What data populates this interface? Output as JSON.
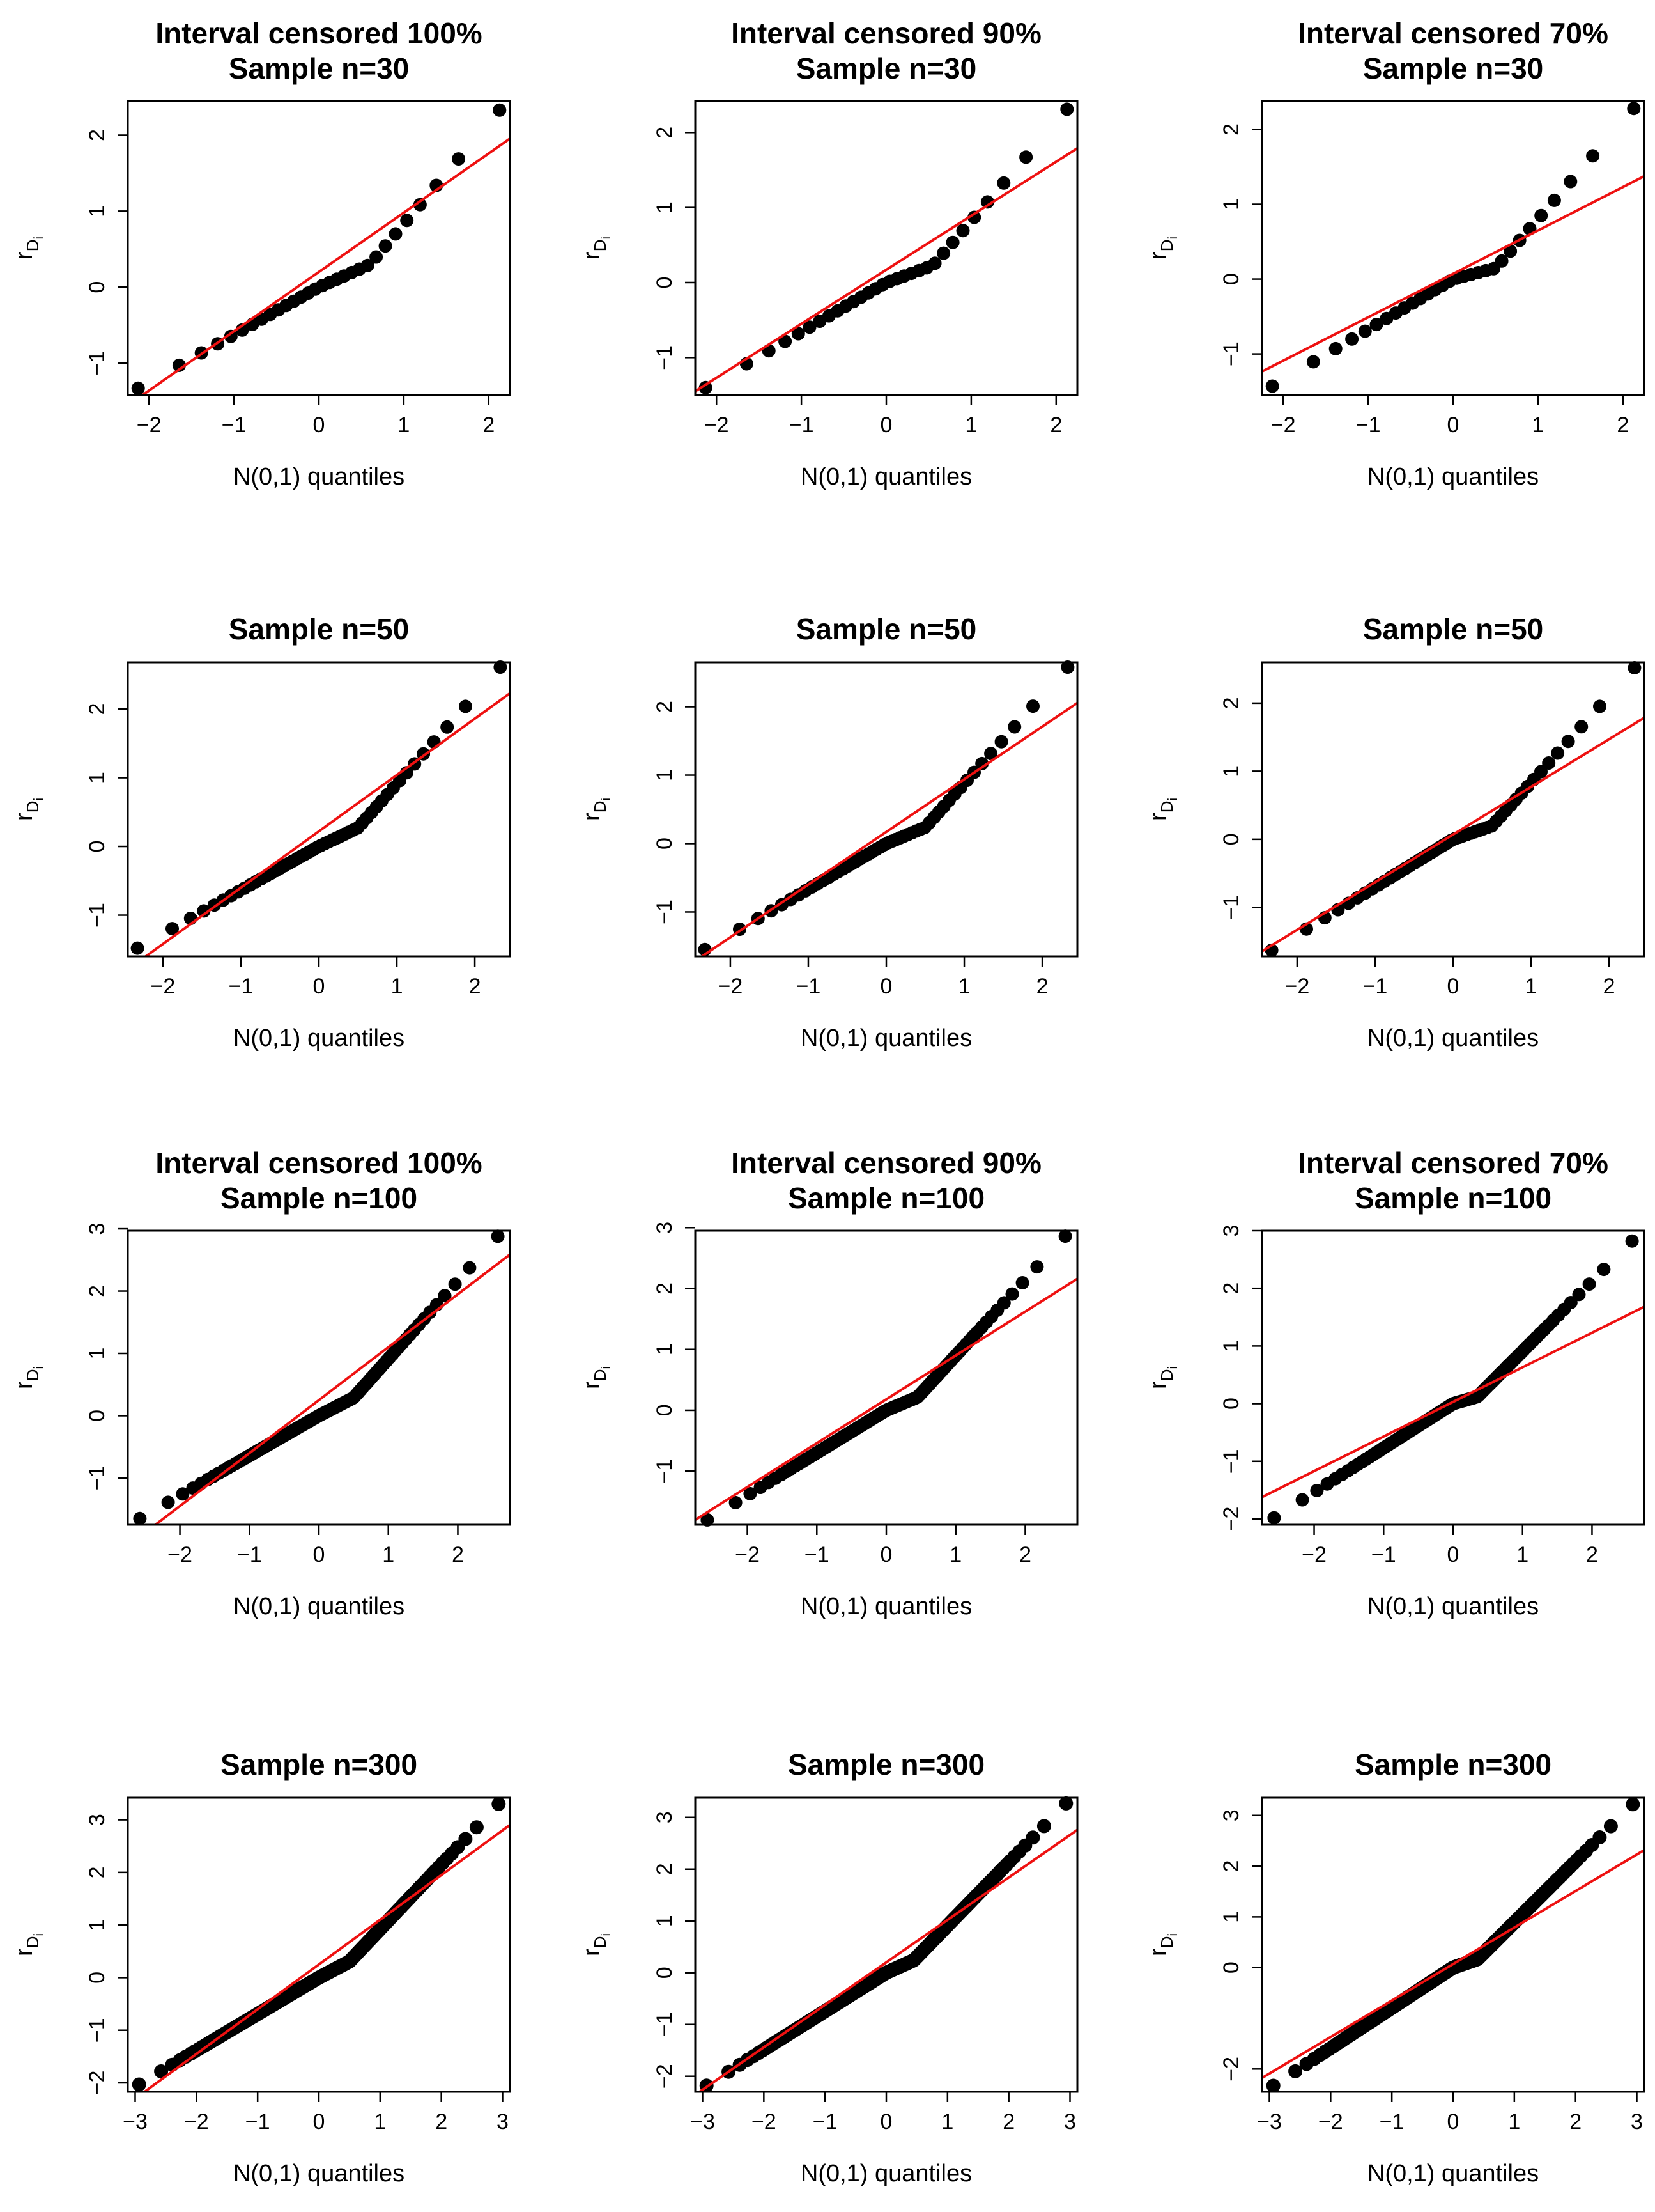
{
  "figure": {
    "x_axis_label": "N(0,1) quantiles",
    "y_axis_label": "r",
    "y_axis_label_subscript": "D",
    "y_axis_label_subsubscript": "i",
    "line_color": "#ee1111",
    "point_color": "#000000"
  },
  "chart_data": [
    {
      "type": "scatter",
      "title": [
        "Interval censored 100%",
        "Sample n=30"
      ],
      "n": 30,
      "xlim": [
        -2.25,
        2.25
      ],
      "ylim": [
        -1.42,
        2.45
      ],
      "xticks": [
        -2,
        -1,
        0,
        1,
        2
      ],
      "yticks": [
        -1,
        0,
        1,
        2
      ],
      "qq_line": {
        "intercept": 0.2,
        "slope": 0.78
      },
      "curve": {
        "knee": 0.6,
        "lower_slope": 0.58,
        "upper_slope": 1.55,
        "min": -1.33,
        "max": 2.33
      }
    },
    {
      "type": "scatter",
      "title": [
        "Interval censored 90%",
        "Sample n=30"
      ],
      "n": 30,
      "xlim": [
        -2.25,
        2.25
      ],
      "ylim": [
        -1.5,
        2.42
      ],
      "xticks": [
        -2,
        -1,
        0,
        1,
        2
      ],
      "yticks": [
        -1,
        0,
        1,
        2
      ],
      "qq_line": {
        "intercept": 0.17,
        "slope": 0.72
      },
      "curve": {
        "knee": 0.55,
        "lower_slope": 0.5,
        "upper_slope": 1.6,
        "min": -1.4,
        "max": 2.31
      }
    },
    {
      "type": "scatter",
      "title": [
        "Interval censored 70%",
        "Sample n=30"
      ],
      "n": 30,
      "xlim": [
        -2.25,
        2.25
      ],
      "ylim": [
        -1.55,
        2.38
      ],
      "xticks": [
        -2,
        -1,
        0,
        1,
        2
      ],
      "yticks": [
        -1,
        0,
        1,
        2
      ],
      "qq_line": {
        "intercept": 0.07,
        "slope": 0.58
      },
      "curve": {
        "knee": 0.5,
        "lower_slope": 0.4,
        "upper_slope": 1.8,
        "min": -1.43,
        "max": 2.28
      }
    },
    {
      "type": "scatter",
      "title": [
        "Sample n=50"
      ],
      "n": 50,
      "xlim": [
        -2.45,
        2.45
      ],
      "ylim": [
        -1.6,
        2.68
      ],
      "xticks": [
        -2,
        -1,
        0,
        1,
        2
      ],
      "yticks": [
        -1,
        0,
        1,
        2
      ],
      "qq_line": {
        "intercept": 0.22,
        "slope": 0.82
      },
      "curve": {
        "knee": 0.5,
        "lower_slope": 0.55,
        "upper_slope": 1.3,
        "min": -1.48,
        "max": 2.61
      }
    },
    {
      "type": "scatter",
      "title": [
        "Sample n=50"
      ],
      "n": 50,
      "xlim": [
        -2.45,
        2.45
      ],
      "ylim": [
        -1.65,
        2.65
      ],
      "xticks": [
        -2,
        -1,
        0,
        1,
        2
      ],
      "yticks": [
        -1,
        0,
        1,
        2
      ],
      "qq_line": {
        "intercept": 0.17,
        "slope": 0.77
      },
      "curve": {
        "knee": 0.5,
        "lower_slope": 0.5,
        "upper_slope": 1.35,
        "min": -1.55,
        "max": 2.58
      }
    },
    {
      "type": "scatter",
      "title": [
        "Sample n=50"
      ],
      "n": 50,
      "xlim": [
        -2.45,
        2.45
      ],
      "ylim": [
        -1.72,
        2.6
      ],
      "xticks": [
        -2,
        -1,
        0,
        1,
        2
      ],
      "yticks": [
        -1,
        0,
        1,
        2
      ],
      "qq_line": {
        "intercept": 0.07,
        "slope": 0.7
      },
      "curve": {
        "knee": 0.5,
        "lower_slope": 0.45,
        "upper_slope": 1.45,
        "min": -1.63,
        "max": 2.52
      }
    },
    {
      "type": "scatter",
      "title": [
        "Interval censored 100%",
        "Sample n=100"
      ],
      "n": 100,
      "xlim": [
        -2.75,
        2.75
      ],
      "ylim": [
        -1.75,
        2.97
      ],
      "xticks": [
        -2,
        -1,
        0,
        1,
        2
      ],
      "yticks": [
        -1,
        0,
        1,
        2,
        3
      ],
      "qq_line": {
        "intercept": 0.25,
        "slope": 0.85
      },
      "curve": {
        "knee": 0.5,
        "lower_slope": 0.6,
        "upper_slope": 1.3,
        "min": -1.65,
        "max": 2.88
      }
    },
    {
      "type": "scatter",
      "title": [
        "Interval censored 90%",
        "Sample n=100"
      ],
      "n": 100,
      "xlim": [
        -2.75,
        2.75
      ],
      "ylim": [
        -1.88,
        2.95
      ],
      "xticks": [
        -2,
        -1,
        0,
        1,
        2
      ],
      "yticks": [
        -1,
        0,
        1,
        2,
        3
      ],
      "qq_line": {
        "intercept": 0.18,
        "slope": 0.72
      },
      "curve": {
        "knee": 0.45,
        "lower_slope": 0.5,
        "upper_slope": 1.3,
        "min": -1.8,
        "max": 2.86
      }
    },
    {
      "type": "scatter",
      "title": [
        "Interval censored 70%",
        "Sample n=100"
      ],
      "n": 100,
      "xlim": [
        -2.75,
        2.75
      ],
      "ylim": [
        -2.1,
        3.0
      ],
      "xticks": [
        -2,
        -1,
        0,
        1,
        2
      ],
      "yticks": [
        -2,
        -1,
        0,
        1,
        2,
        3
      ],
      "qq_line": {
        "intercept": 0.03,
        "slope": 0.6
      },
      "curve": {
        "knee": 0.35,
        "lower_slope": 0.4,
        "upper_slope": 1.4,
        "min": -1.98,
        "max": 2.82
      }
    },
    {
      "type": "scatter",
      "title": [
        "Sample n=300"
      ],
      "n": 300,
      "xlim": [
        -3.12,
        3.12
      ],
      "ylim": [
        -2.17,
        3.42
      ],
      "xticks": [
        -3,
        -2,
        -1,
        0,
        1,
        2,
        3
      ],
      "yticks": [
        -2,
        -1,
        0,
        1,
        2,
        3
      ],
      "qq_line": {
        "intercept": 0.25,
        "slope": 0.85
      },
      "curve": {
        "knee": 0.5,
        "lower_slope": 0.6,
        "upper_slope": 1.2,
        "min": -2.03,
        "max": 3.3
      }
    },
    {
      "type": "scatter",
      "title": [
        "Sample n=300"
      ],
      "n": 300,
      "xlim": [
        -3.12,
        3.12
      ],
      "ylim": [
        -2.3,
        3.38
      ],
      "xticks": [
        -3,
        -2,
        -1,
        0,
        1,
        2,
        3
      ],
      "yticks": [
        -2,
        -1,
        0,
        1,
        2,
        3
      ],
      "qq_line": {
        "intercept": 0.2,
        "slope": 0.82
      },
      "curve": {
        "knee": 0.45,
        "lower_slope": 0.55,
        "upper_slope": 1.25,
        "min": -2.18,
        "max": 3.27
      }
    },
    {
      "type": "scatter",
      "title": [
        "Sample n=300"
      ],
      "n": 300,
      "xlim": [
        -3.12,
        3.12
      ],
      "ylim": [
        -2.45,
        3.35
      ],
      "xticks": [
        -3,
        -2,
        -1,
        0,
        1,
        2,
        3
      ],
      "yticks": [
        -2,
        0,
        1,
        2,
        3
      ],
      "qq_line": {
        "intercept": 0.07,
        "slope": 0.72
      },
      "curve": {
        "knee": 0.4,
        "lower_slope": 0.45,
        "upper_slope": 1.3,
        "min": -2.33,
        "max": 3.22
      }
    }
  ]
}
